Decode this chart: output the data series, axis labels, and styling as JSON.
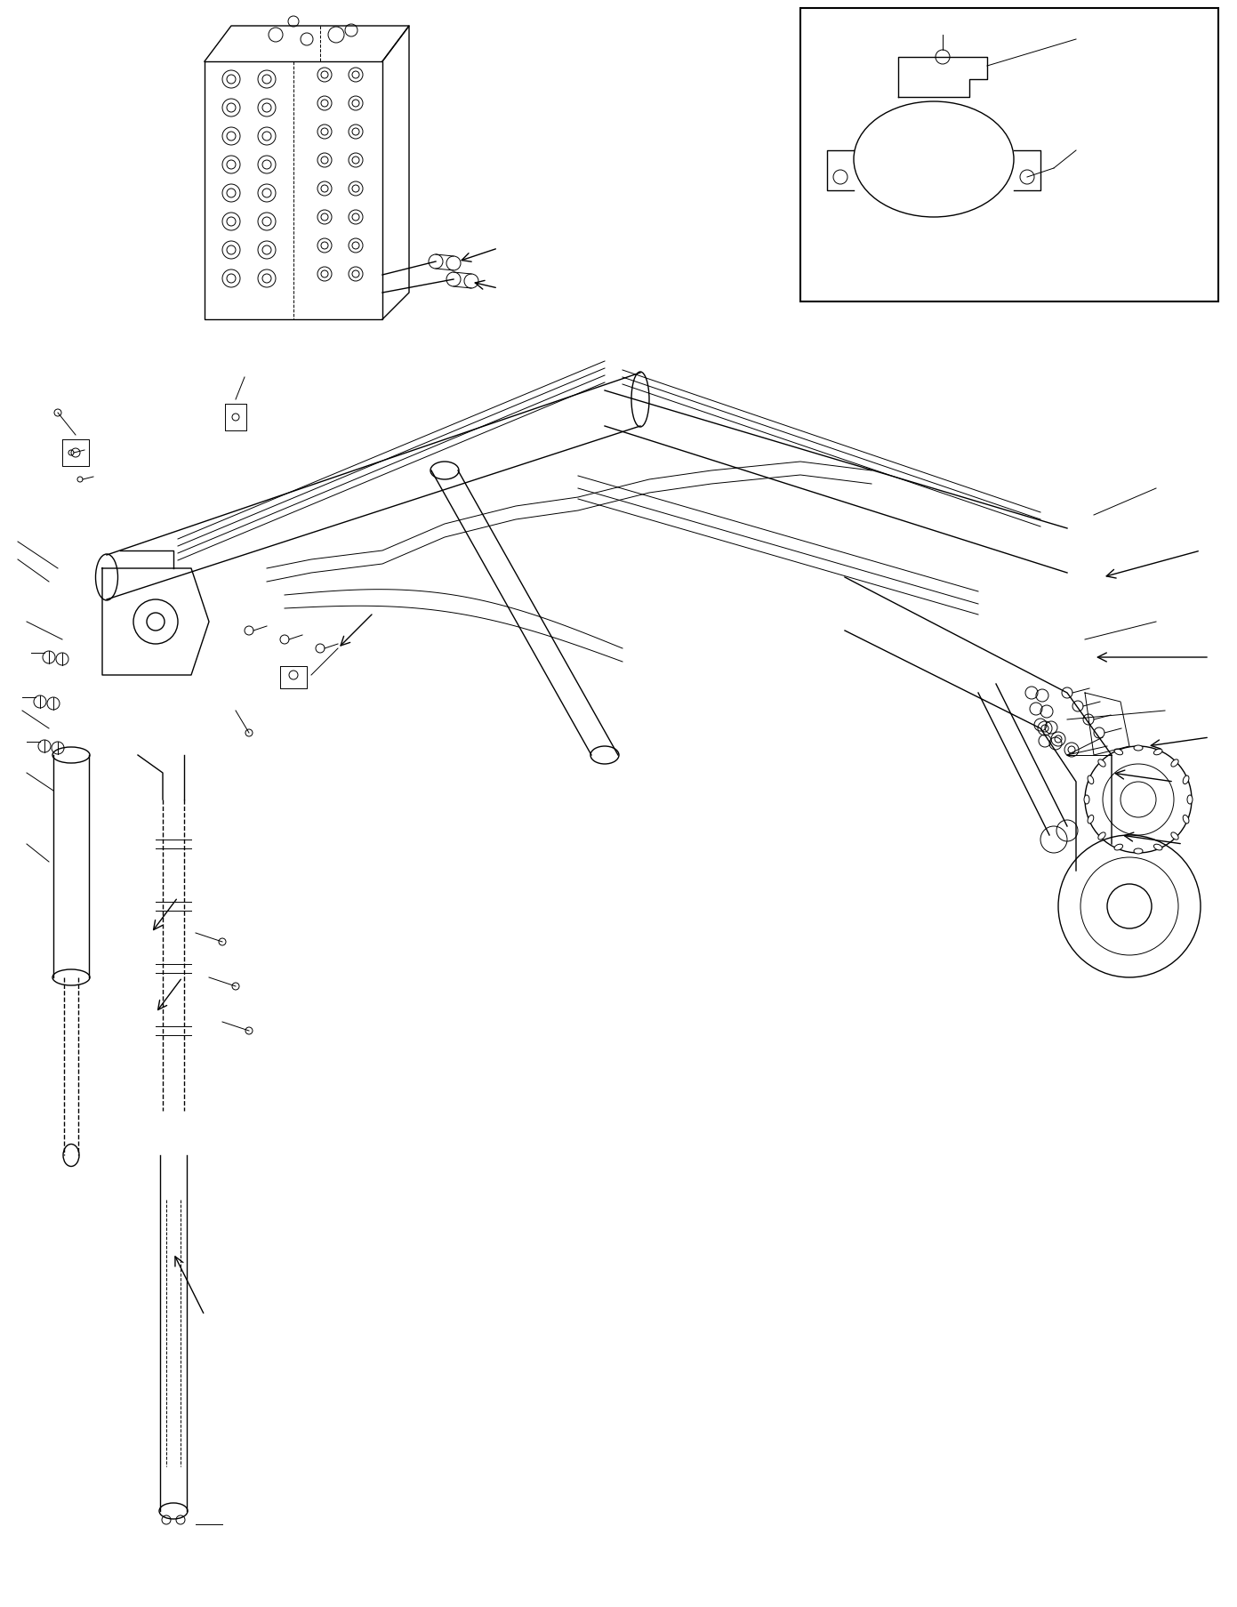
{
  "title": "",
  "background_color": "#ffffff",
  "line_color": "#000000",
  "fig_width": 13.91,
  "fig_height": 18.08,
  "dpi": 100
}
